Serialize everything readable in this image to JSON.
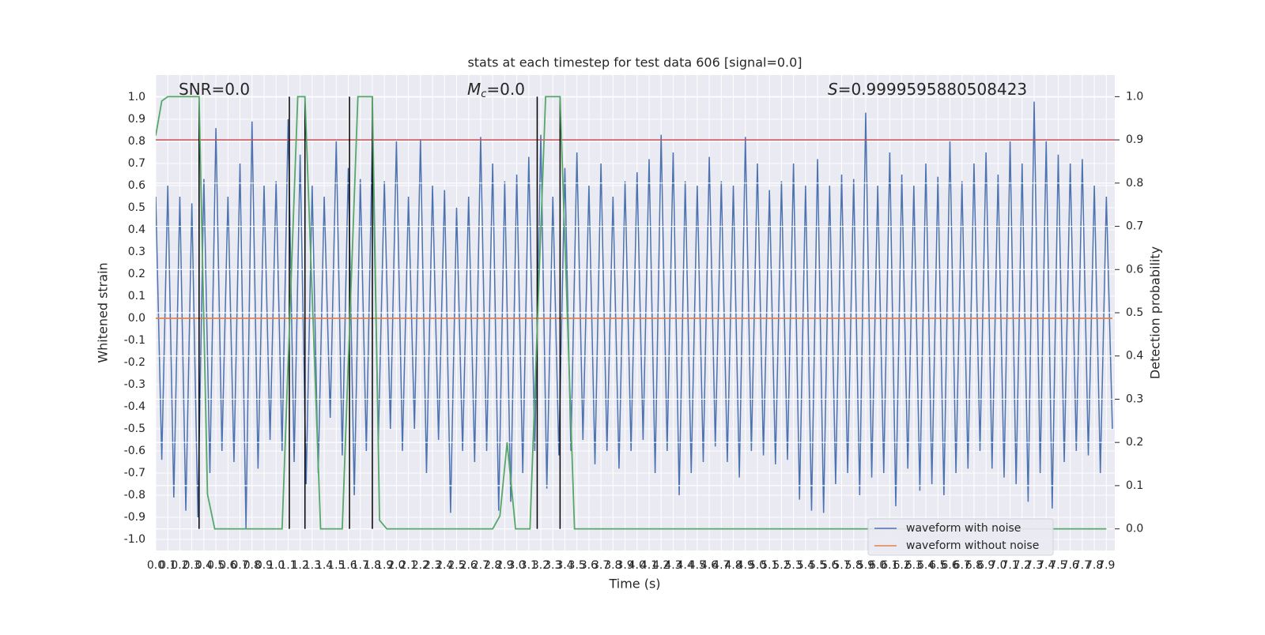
{
  "chart_data": {
    "type": "line",
    "title": "stats at each timestep for test data 606 [signal=0.0]",
    "xlabel": "Time (s)",
    "ylabel": "Whitened strain",
    "y2label": "Detection probability",
    "annotations": [
      [
        "SNR=0.0"
      ],
      [
        "M",
        "c",
        "=0.0"
      ],
      [
        "S",
        "=0.9999595880508423"
      ]
    ],
    "background": "#eaeaf2",
    "grid": true,
    "legend": "lower right",
    "xlim": [
      0,
      7.97
    ],
    "ylim": [
      -1.05,
      1.1
    ],
    "y2lim": [
      -0.05,
      1.05
    ],
    "xticks": [
      {
        "value": 0,
        "label": "0.0"
      },
      0.1,
      0.2,
      0.3,
      0.4,
      0.5,
      0.6,
      0.7,
      0.8,
      0.9,
      {
        "value": 1,
        "label": "1.0"
      },
      1.1,
      1.2,
      1.3,
      1.4,
      1.5,
      1.6,
      1.7,
      1.8,
      1.9,
      {
        "value": 2,
        "label": "2.0"
      },
      2.1,
      2.2,
      2.3,
      2.4,
      2.5,
      2.6,
      2.7,
      2.8,
      2.9,
      {
        "value": 3,
        "label": "3.0"
      },
      3.1,
      3.2,
      3.3,
      3.4,
      3.5,
      3.6,
      3.7,
      3.8,
      3.9,
      {
        "value": 4,
        "label": "4.0"
      },
      4.1,
      4.2,
      4.3,
      4.4,
      4.5,
      4.6,
      4.7,
      4.8,
      4.9,
      {
        "value": 5,
        "label": "5.0"
      },
      5.1,
      5.2,
      5.3,
      5.4,
      5.5,
      5.6,
      5.7,
      5.8,
      5.9,
      {
        "value": 6,
        "label": "6.0"
      },
      6.1,
      6.2,
      6.3,
      6.4,
      6.5,
      6.6,
      6.7,
      6.8,
      6.9,
      {
        "value": 7,
        "label": "7.0"
      },
      7.1,
      7.2,
      7.3,
      7.4,
      7.5,
      7.6,
      7.7,
      7.8,
      7.9
    ],
    "yticks": [
      {
        "value": -1,
        "label": "-1.0"
      },
      -0.9,
      -0.8,
      -0.7,
      -0.6,
      -0.5,
      -0.4,
      -0.3,
      -0.2,
      -0.1,
      {
        "value": 0,
        "label": "0.0"
      },
      0.1,
      0.2,
      0.3,
      0.4,
      0.5,
      0.6,
      0.7,
      0.8,
      0.9,
      {
        "value": 1,
        "label": "1.0"
      }
    ],
    "y2ticks": [
      {
        "value": 0,
        "label": "0.0"
      },
      0.1,
      0.2,
      0.3,
      0.4,
      0.5,
      0.6,
      0.7,
      0.8,
      0.9,
      {
        "value": 1,
        "label": "1.0"
      }
    ],
    "series": [
      {
        "name": "waveform with noise",
        "color": "#4c72b0",
        "axis": "y",
        "x": [
          0,
          0.05,
          0.1,
          0.15,
          0.2,
          0.25,
          0.3,
          0.35,
          0.4,
          0.45,
          0.5,
          0.55,
          0.6,
          0.65,
          0.7,
          0.75,
          0.8,
          0.85,
          0.9,
          0.95,
          1,
          1.05,
          1.1,
          1.15,
          1.2,
          1.25,
          1.3,
          1.35,
          1.4,
          1.45,
          1.5,
          1.55,
          1.6,
          1.65,
          1.7,
          1.75,
          1.8,
          1.85,
          1.9,
          1.95,
          2,
          2.05,
          2.1,
          2.15,
          2.2,
          2.25,
          2.3,
          2.35,
          2.4,
          2.45,
          2.5,
          2.55,
          2.6,
          2.65,
          2.7,
          2.75,
          2.8,
          2.85,
          2.9,
          2.95,
          3,
          3.05,
          3.1,
          3.15,
          3.2,
          3.25,
          3.3,
          3.35,
          3.4,
          3.45,
          3.5,
          3.55,
          3.6,
          3.65,
          3.7,
          3.75,
          3.8,
          3.85,
          3.9,
          3.95,
          4,
          4.05,
          4.1,
          4.15,
          4.2,
          4.25,
          4.3,
          4.35,
          4.4,
          4.45,
          4.5,
          4.55,
          4.6,
          4.65,
          4.7,
          4.75,
          4.8,
          4.85,
          4.9,
          4.95,
          5,
          5.05,
          5.1,
          5.15,
          5.2,
          5.25,
          5.3,
          5.35,
          5.4,
          5.45,
          5.5,
          5.55,
          5.6,
          5.65,
          5.7,
          5.75,
          5.8,
          5.85,
          5.9,
          5.95,
          6,
          6.05,
          6.1,
          6.15,
          6.2,
          6.25,
          6.3,
          6.35,
          6.4,
          6.45,
          6.5,
          6.55,
          6.6,
          6.65,
          6.7,
          6.75,
          6.8,
          6.85,
          6.9,
          6.95,
          7,
          7.05,
          7.1,
          7.15,
          7.2,
          7.25,
          7.3,
          7.35,
          7.4,
          7.45,
          7.5,
          7.55,
          7.6,
          7.65,
          7.7,
          7.75,
          7.8,
          7.85,
          7.9,
          7.95
        ],
        "values": [
          0.55,
          -0.64,
          0.6,
          -0.81,
          0.55,
          -0.87,
          0.52,
          -0.9,
          0.63,
          -0.7,
          0.86,
          -0.6,
          0.55,
          -0.65,
          0.7,
          -0.95,
          0.89,
          -0.68,
          0.6,
          -0.55,
          0.62,
          -0.6,
          0.9,
          -0.65,
          0.74,
          -0.75,
          0.6,
          -0.7,
          0.55,
          -0.45,
          0.8,
          -0.62,
          0.68,
          -0.8,
          0.63,
          -0.6,
          0.81,
          -0.55,
          0.62,
          -0.5,
          0.8,
          -0.6,
          0.55,
          -0.5,
          0.81,
          -0.7,
          0.6,
          -0.55,
          0.58,
          -0.88,
          0.5,
          -0.6,
          0.55,
          -0.65,
          0.82,
          -0.6,
          0.7,
          -0.87,
          0.62,
          -0.83,
          0.65,
          -0.7,
          0.73,
          -0.6,
          0.83,
          -0.77,
          0.55,
          -0.62,
          0.68,
          -0.6,
          0.75,
          -0.55,
          0.6,
          -0.66,
          0.7,
          -0.6,
          0.55,
          -0.68,
          0.62,
          -0.6,
          0.66,
          -0.55,
          0.72,
          -0.7,
          0.83,
          -0.6,
          0.75,
          -0.8,
          0.62,
          -0.7,
          0.6,
          -0.65,
          0.73,
          -0.58,
          0.62,
          -0.65,
          0.6,
          -0.72,
          0.82,
          -0.6,
          0.7,
          -0.62,
          0.58,
          -0.66,
          0.62,
          -0.64,
          0.7,
          -0.82,
          0.6,
          -0.87,
          0.72,
          -0.88,
          0.6,
          -0.75,
          0.65,
          -0.7,
          0.63,
          -0.8,
          0.93,
          -0.72,
          0.6,
          -0.7,
          0.75,
          -0.85,
          0.65,
          -0.68,
          0.6,
          -0.78,
          0.7,
          -0.75,
          0.64,
          -0.8,
          0.8,
          -0.7,
          0.62,
          -0.68,
          0.7,
          -0.6,
          0.75,
          -0.68,
          0.65,
          -0.72,
          0.8,
          -0.75,
          0.7,
          -0.83,
          0.98,
          -0.7,
          0.8,
          -0.86,
          0.74,
          -0.65,
          0.7,
          -0.6,
          0.72,
          -0.62,
          0.6,
          -0.7,
          0.55,
          -0.5
        ]
      },
      {
        "name": "waveform without noise",
        "color": "#dd8452",
        "axis": "y",
        "x": [
          0,
          7.95
        ],
        "values": [
          0,
          0
        ]
      }
    ],
    "detection": {
      "color": "#55a868",
      "axis": "y2",
      "x": [
        0,
        0.05,
        0.1,
        0.36,
        0.43,
        0.49,
        1.05,
        1.18,
        1.24,
        1.37,
        1.55,
        1.68,
        1.8,
        1.86,
        1.92,
        2.8,
        2.86,
        2.92,
        2.99,
        3.11,
        3.24,
        3.36,
        3.48,
        7.9
      ],
      "values": [
        0.91,
        0.99,
        1,
        1,
        0.08,
        0,
        0,
        1,
        1,
        0,
        0,
        1,
        1,
        0.02,
        0,
        0,
        0.03,
        0.2,
        0,
        0,
        1,
        1,
        0,
        0
      ]
    },
    "events": {
      "color": "#000000",
      "axis": "y2",
      "x": [
        0.36,
        1.11,
        1.24,
        1.61,
        1.8,
        3.17,
        3.36
      ]
    },
    "threshold": {
      "color": "#c44e52",
      "axis": "y2",
      "value": 0.9
    }
  }
}
